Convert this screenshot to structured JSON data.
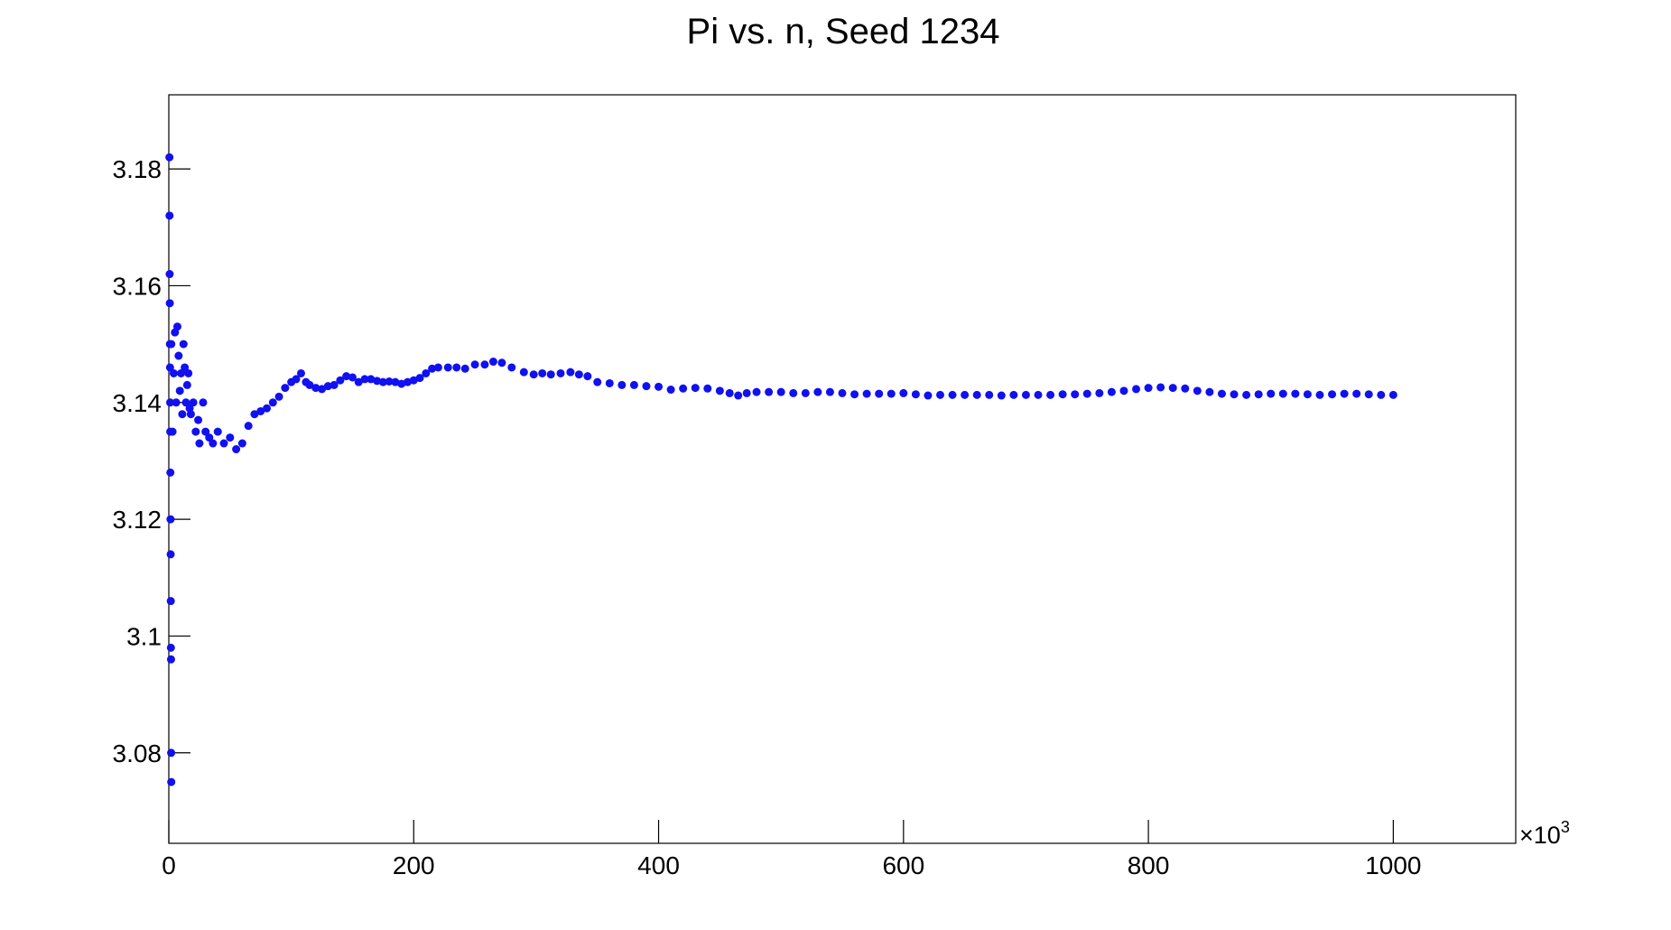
{
  "chart_data": {
    "type": "scatter",
    "title": "Pi vs. n, Seed 1234",
    "x_multiplier": {
      "base": "×10",
      "exponent": "3"
    },
    "color": "#1010f0",
    "xlim": [
      0,
      1100
    ],
    "xticks": [
      0,
      200,
      400,
      600,
      800,
      1000
    ],
    "ylim": [
      3.0645,
      3.1927
    ],
    "yticks": [
      3.08,
      3.1,
      3.12,
      3.14,
      3.16,
      3.18
    ],
    "x": [
      0.5,
      0.6,
      0.7,
      0.8,
      0.9,
      1,
      1.1,
      1.2,
      1.3,
      1.4,
      1.5,
      1.6,
      1.7,
      1.8,
      1.9,
      2,
      2,
      3,
      4,
      5,
      6,
      7,
      8,
      9,
      10,
      11,
      12,
      13,
      14,
      15,
      16,
      17,
      18,
      20,
      22,
      24,
      25,
      28,
      30,
      33,
      36,
      40,
      45,
      50,
      55,
      60,
      65,
      70,
      75,
      80,
      85,
      90,
      95,
      100,
      104,
      108,
      112,
      115,
      120,
      125,
      130,
      135,
      140,
      145,
      150,
      155,
      160,
      165,
      170,
      175,
      180,
      185,
      190,
      195,
      200,
      205,
      210,
      215,
      220,
      228,
      235,
      242,
      250,
      258,
      265,
      272,
      280,
      290,
      298,
      305,
      312,
      320,
      328,
      335,
      342,
      350,
      360,
      370,
      380,
      390,
      400,
      410,
      420,
      430,
      440,
      450,
      458,
      465,
      472,
      480,
      490,
      500,
      510,
      520,
      530,
      540,
      550,
      560,
      570,
      580,
      590,
      600,
      610,
      620,
      630,
      640,
      650,
      660,
      670,
      680,
      690,
      700,
      710,
      720,
      730,
      740,
      750,
      760,
      770,
      780,
      790,
      800,
      810,
      820,
      830,
      840,
      850,
      860,
      870,
      880,
      890,
      900,
      910,
      920,
      930,
      940,
      950,
      960,
      970,
      980,
      990,
      1000
    ],
    "y": [
      3.182,
      3.172,
      3.162,
      3.157,
      3.15,
      3.146,
      3.14,
      3.135,
      3.128,
      3.12,
      3.114,
      3.106,
      3.098,
      3.096,
      3.08,
      3.075,
      3.15,
      3.135,
      3.145,
      3.152,
      3.14,
      3.153,
      3.148,
      3.142,
      3.145,
      3.138,
      3.15,
      3.146,
      3.14,
      3.143,
      3.145,
      3.139,
      3.138,
      3.14,
      3.135,
      3.137,
      3.133,
      3.14,
      3.135,
      3.134,
      3.133,
      3.135,
      3.133,
      3.134,
      3.132,
      3.133,
      3.136,
      3.138,
      3.1385,
      3.139,
      3.14,
      3.141,
      3.1425,
      3.1435,
      3.144,
      3.145,
      3.1435,
      3.143,
      3.1425,
      3.1423,
      3.1428,
      3.143,
      3.1438,
      3.1445,
      3.1443,
      3.1435,
      3.144,
      3.144,
      3.1437,
      3.1435,
      3.1436,
      3.1435,
      3.1432,
      3.1435,
      3.1438,
      3.1442,
      3.145,
      3.1458,
      3.146,
      3.146,
      3.146,
      3.1458,
      3.1465,
      3.1465,
      3.147,
      3.1468,
      3.146,
      3.1452,
      3.1448,
      3.145,
      3.1448,
      3.145,
      3.1452,
      3.1448,
      3.1445,
      3.1435,
      3.1433,
      3.143,
      3.143,
      3.1428,
      3.1427,
      3.1422,
      3.1424,
      3.1425,
      3.1424,
      3.142,
      3.1416,
      3.1412,
      3.1416,
      3.1418,
      3.1418,
      3.1418,
      3.1416,
      3.1416,
      3.1418,
      3.1418,
      3.1416,
      3.1414,
      3.1415,
      3.1415,
      3.1415,
      3.1416,
      3.1414,
      3.1412,
      3.1413,
      3.1413,
      3.1413,
      3.1413,
      3.1413,
      3.1412,
      3.1413,
      3.1413,
      3.1413,
      3.1413,
      3.1414,
      3.1414,
      3.1415,
      3.1416,
      3.1418,
      3.142,
      3.1423,
      3.1425,
      3.1426,
      3.1425,
      3.1424,
      3.142,
      3.1418,
      3.1415,
      3.1414,
      3.1413,
      3.1414,
      3.1415,
      3.1415,
      3.1415,
      3.1414,
      3.1413,
      3.1414,
      3.1415,
      3.1415,
      3.1414,
      3.1413,
      3.1413
    ]
  }
}
